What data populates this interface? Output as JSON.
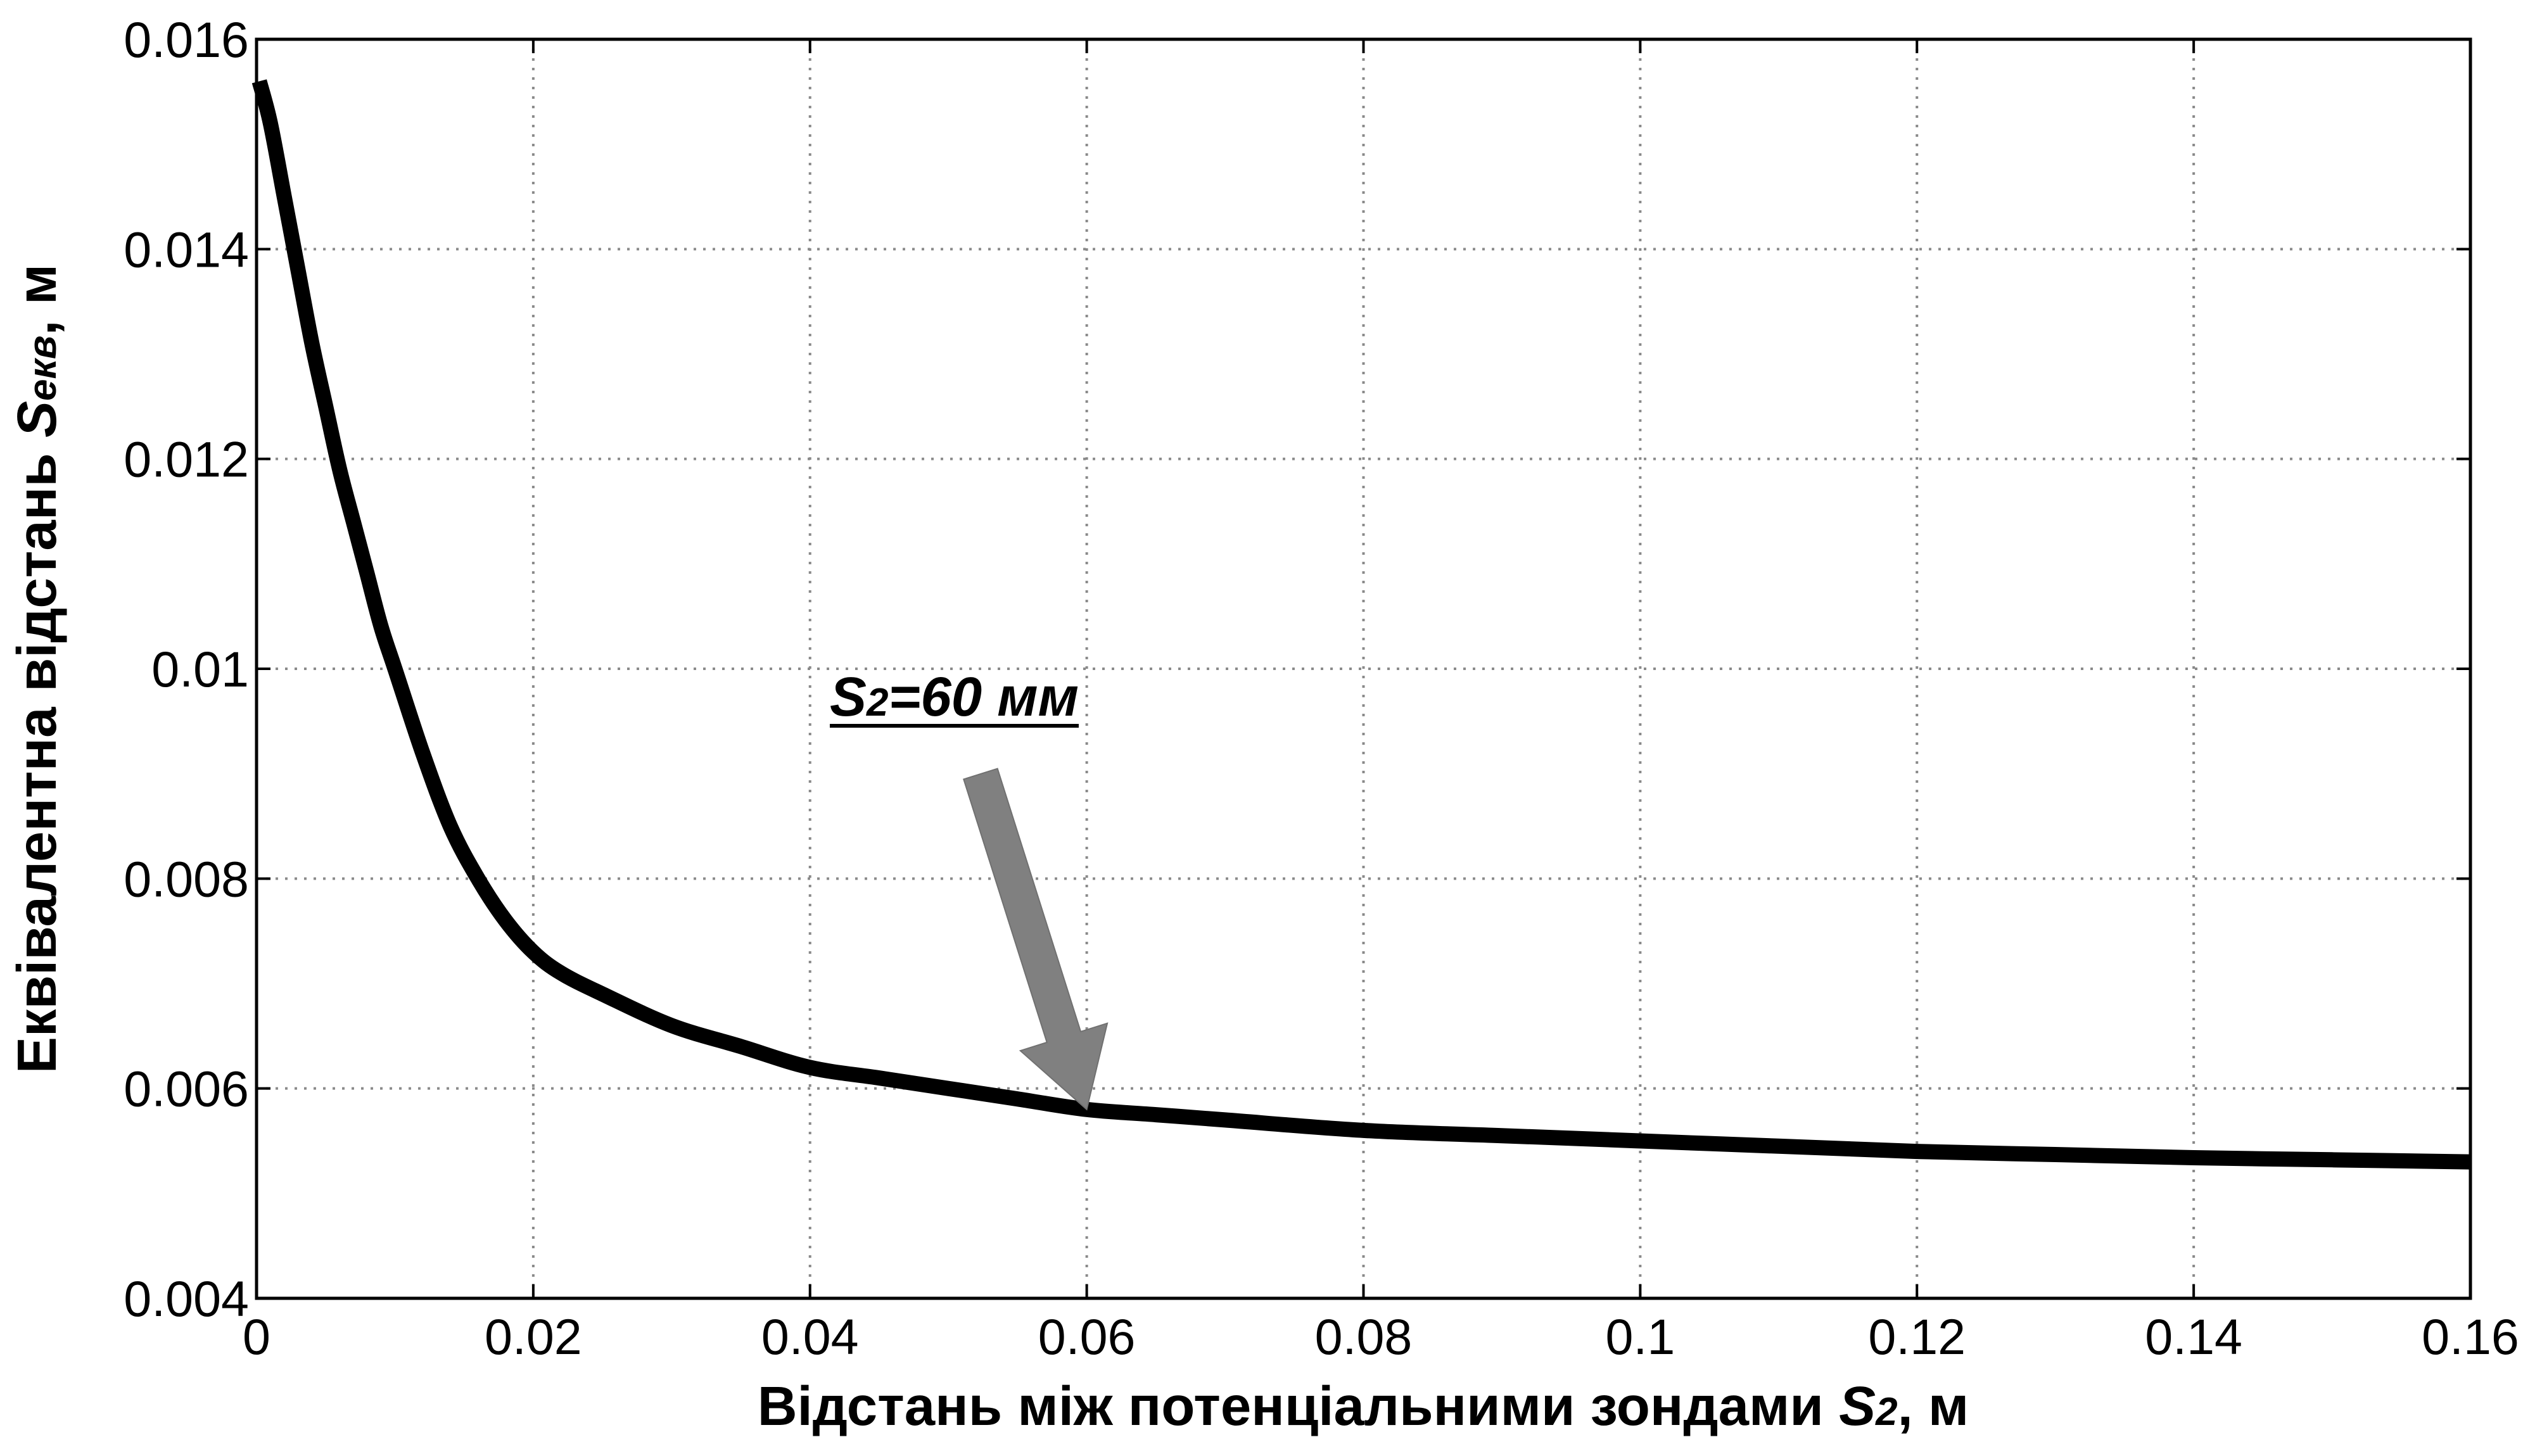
{
  "chart_data": {
    "type": "line",
    "xlabel": {
      "main": "Відстань між потенціальними зондами ",
      "symbol": "S",
      "sub": "2",
      "unit": ", м"
    },
    "ylabel": {
      "main": "Еквівалентна відстань ",
      "symbol": "S",
      "sub": "екв",
      "unit": ", м"
    },
    "xlim": [
      0,
      0.16
    ],
    "ylim": [
      0.004,
      0.016
    ],
    "x_ticks": [
      0,
      0.02,
      0.04,
      0.06,
      0.08,
      0.1,
      0.12,
      0.14,
      0.16
    ],
    "y_ticks": [
      0.004,
      0.006,
      0.008,
      0.01,
      0.012,
      0.014,
      0.016
    ],
    "x_tick_labels": [
      "0",
      "0.02",
      "0.04",
      "0.06",
      "0.08",
      "0.1",
      "0.12",
      "0.14",
      "0.16"
    ],
    "y_tick_labels": [
      "0.004",
      "0.006",
      "0.008",
      "0.01",
      "0.012",
      "0.014",
      "0.016"
    ],
    "grid": true,
    "series": [
      {
        "color": "#000000",
        "x": [
          0.0002,
          0.001,
          0.002,
          0.003,
          0.004,
          0.005,
          0.006,
          0.007,
          0.008,
          0.009,
          0.01,
          0.012,
          0.014,
          0.016,
          0.018,
          0.02,
          0.022,
          0.025,
          0.03,
          0.035,
          0.04,
          0.045,
          0.05,
          0.055,
          0.06,
          0.065,
          0.07,
          0.08,
          0.09,
          0.1,
          0.11,
          0.12,
          0.13,
          0.14,
          0.15,
          0.16
        ],
        "y": [
          0.0156,
          0.0152,
          0.0145,
          0.0138,
          0.0131,
          0.0125,
          0.0119,
          0.0114,
          0.0109,
          0.0104,
          0.01,
          0.0092,
          0.0085,
          0.008,
          0.0076,
          0.0073,
          0.0071,
          0.0069,
          0.0066,
          0.0064,
          0.0062,
          0.0061,
          0.006,
          0.0059,
          0.0058,
          0.00575,
          0.0057,
          0.0056,
          0.00555,
          0.0055,
          0.00545,
          0.0054,
          0.00537,
          0.00534,
          0.00532,
          0.0053
        ]
      }
    ],
    "annotation": {
      "symbol": "S",
      "sub": "2",
      "rest": "=60 мм",
      "target_x": 0.06,
      "target_y": 0.0058,
      "arrow_color": "#808080"
    }
  }
}
